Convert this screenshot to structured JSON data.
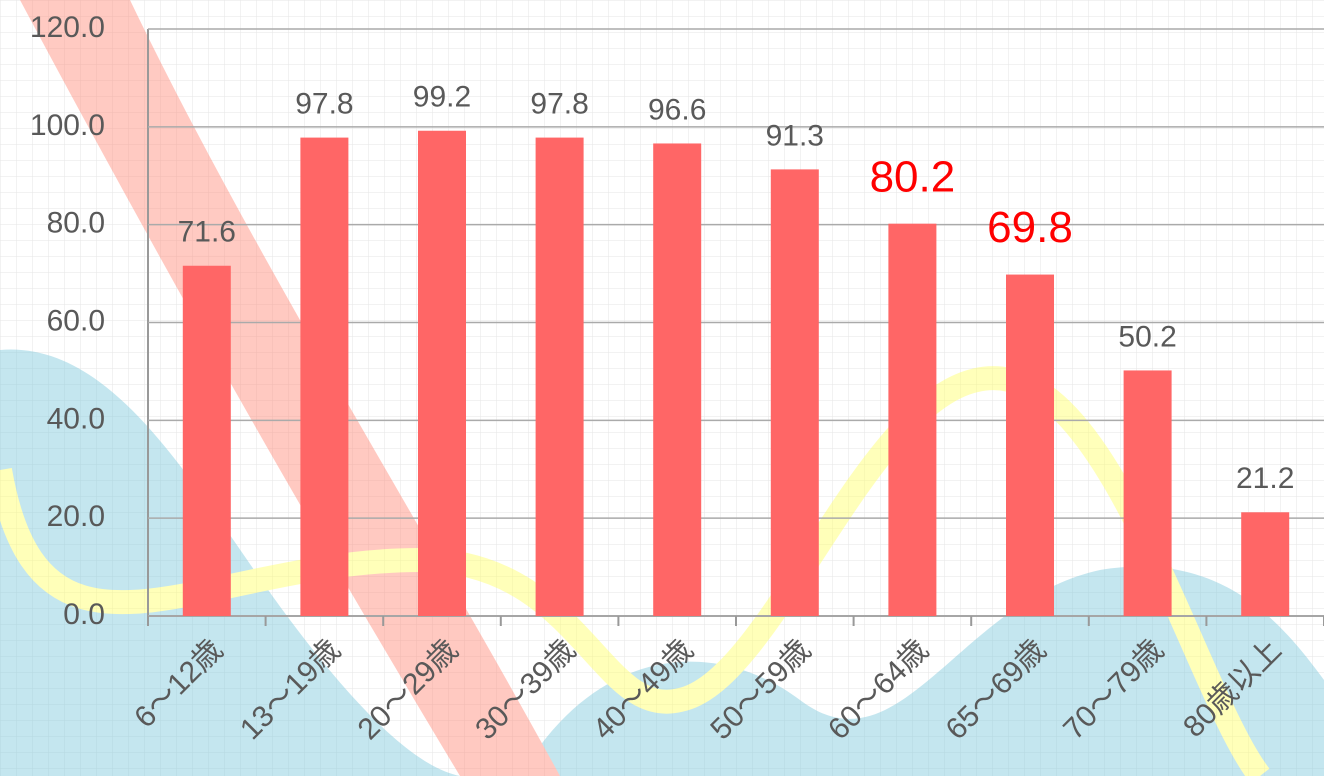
{
  "chart_data": {
    "type": "bar",
    "categories": [
      "6～12歳",
      "13～19歳",
      "20～29歳",
      "30～39歳",
      "40～49歳",
      "50～59歳",
      "60～64歳",
      "65～69歳",
      "70～79歳",
      "80歳以上"
    ],
    "values": [
      71.6,
      97.8,
      99.2,
      97.8,
      96.6,
      91.3,
      80.2,
      69.8,
      50.2,
      21.2
    ],
    "color": "#ff6666",
    "label_colors": [
      "#595959",
      "#595959",
      "#595959",
      "#595959",
      "#595959",
      "#595959",
      "#ff0000",
      "#ff0000",
      "#595959",
      "#595959"
    ],
    "ylim": [
      0,
      120
    ],
    "yticks": [
      {
        "value": 0,
        "label": "0.0"
      },
      {
        "value": 20,
        "label": "20.0"
      },
      {
        "value": 40,
        "label": "40.0"
      },
      {
        "value": 60,
        "label": "60.0"
      },
      {
        "value": 80,
        "label": "80.0"
      },
      {
        "value": 100,
        "label": "100.0"
      },
      {
        "value": 120,
        "label": "120.0"
      }
    ],
    "grid": true
  }
}
